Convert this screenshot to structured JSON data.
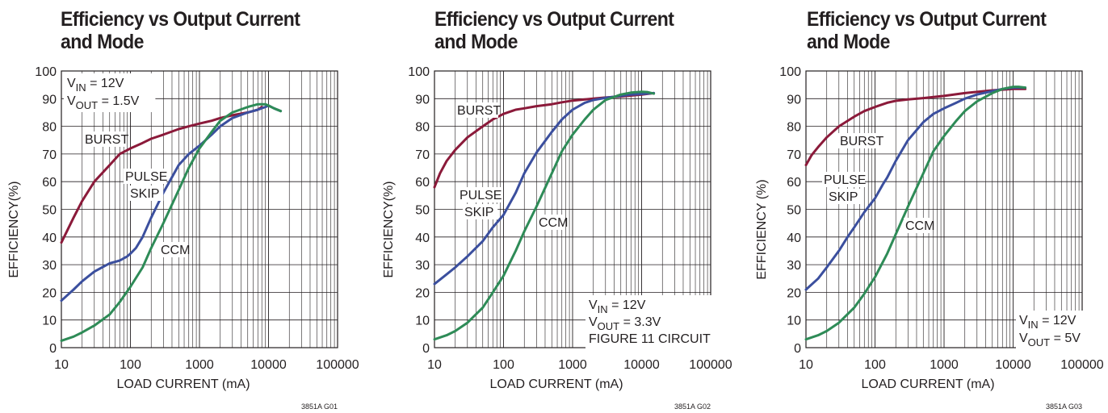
{
  "chart_data": [
    {
      "type": "line",
      "title": [
        "Efficiency vs Output Current",
        "and Mode"
      ],
      "xlabel": "LOAD CURRENT (mA)",
      "ylabel": "EFFICIENCY(%)",
      "xscale": "log",
      "xlim": [
        10,
        100000
      ],
      "ylim": [
        0,
        100
      ],
      "xticks": [
        "10",
        "100",
        "1000",
        "10000",
        "100000"
      ],
      "yticks": [
        "0",
        "10",
        "20",
        "30",
        "40",
        "50",
        "60",
        "70",
        "80",
        "90",
        "100"
      ],
      "conditions": [
        {
          "main": "V",
          "sub": "IN",
          "rest": " = 12V"
        },
        {
          "main": "V",
          "sub": "OUT",
          "rest": " = 1.5V"
        }
      ],
      "conditions_position": "top-left",
      "code": "3851A G01",
      "series": [
        {
          "name": "BURST",
          "color": "#8b1a3a",
          "label": [
            "BURST"
          ],
          "points": [
            [
              10,
              38
            ],
            [
              15,
              47
            ],
            [
              20,
              53
            ],
            [
              30,
              60
            ],
            [
              50,
              66
            ],
            [
              70,
              70
            ],
            [
              100,
              72
            ],
            [
              150,
              74
            ],
            [
              200,
              75.5
            ],
            [
              300,
              77
            ],
            [
              500,
              79
            ],
            [
              700,
              80
            ],
            [
              1000,
              81
            ],
            [
              1500,
              82
            ],
            [
              2000,
              83
            ],
            [
              3000,
              84
            ],
            [
              5000,
              85
            ],
            [
              7000,
              86
            ],
            [
              8000,
              87
            ]
          ]
        },
        {
          "name": "PULSE SKIP",
          "color": "#3b4f9e",
          "label": [
            "PULSE",
            "SKIP"
          ],
          "points": [
            [
              10,
              17
            ],
            [
              15,
              21
            ],
            [
              20,
              24
            ],
            [
              30,
              27.5
            ],
            [
              50,
              30.5
            ],
            [
              70,
              31.5
            ],
            [
              90,
              33
            ],
            [
              100,
              34
            ],
            [
              120,
              36
            ],
            [
              150,
              40
            ],
            [
              200,
              47
            ],
            [
              300,
              56
            ],
            [
              500,
              66
            ],
            [
              700,
              70
            ],
            [
              1000,
              73
            ],
            [
              1500,
              77
            ],
            [
              2000,
              80
            ],
            [
              3000,
              83
            ],
            [
              5000,
              85
            ],
            [
              7000,
              86
            ],
            [
              9000,
              87
            ],
            [
              10000,
              87.5
            ],
            [
              12000,
              86.5
            ],
            [
              15000,
              85.5
            ]
          ]
        },
        {
          "name": "CCM",
          "color": "#2e8b57",
          "label": [
            "CCM"
          ],
          "points": [
            [
              10,
              2.5
            ],
            [
              15,
              4
            ],
            [
              20,
              5.5
            ],
            [
              30,
              8
            ],
            [
              50,
              12
            ],
            [
              70,
              16.5
            ],
            [
              100,
              22
            ],
            [
              150,
              29
            ],
            [
              200,
              36
            ],
            [
              300,
              45
            ],
            [
              500,
              57
            ],
            [
              700,
              65
            ],
            [
              1000,
              72
            ],
            [
              1500,
              78
            ],
            [
              2000,
              82
            ],
            [
              3000,
              85
            ],
            [
              5000,
              87
            ],
            [
              7000,
              88
            ],
            [
              9000,
              88
            ],
            [
              10000,
              87.5
            ],
            [
              12000,
              86.5
            ],
            [
              15000,
              85.5
            ]
          ]
        }
      ]
    },
    {
      "type": "line",
      "title": [
        "Efficiency vs Output Current",
        "and Mode"
      ],
      "xlabel": "LOAD CURRENT (mA)",
      "ylabel": "EFFICIENCY(%)",
      "xscale": "log",
      "xlim": [
        10,
        100000
      ],
      "ylim": [
        0,
        100
      ],
      "xticks": [
        "10",
        "100",
        "1000",
        "10000",
        "100000"
      ],
      "yticks": [
        "0",
        "10",
        "20",
        "30",
        "40",
        "50",
        "60",
        "70",
        "80",
        "90",
        "100"
      ],
      "conditions": [
        {
          "main": "V",
          "sub": "IN",
          "rest": " = 12V"
        },
        {
          "main": "V",
          "sub": "OUT",
          "rest": " = 3.3V"
        },
        {
          "main": "FIGURE 11 CIRCUIT",
          "sub": "",
          "rest": ""
        }
      ],
      "conditions_position": "bottom-right",
      "code": "3851A G02",
      "series": [
        {
          "name": "BURST",
          "color": "#8b1a3a",
          "label": [
            "BURST"
          ],
          "points": [
            [
              10,
              58
            ],
            [
              12,
              63
            ],
            [
              15,
              67.5
            ],
            [
              20,
              71.5
            ],
            [
              30,
              76
            ],
            [
              50,
              80
            ],
            [
              70,
              82.5
            ],
            [
              100,
              84.5
            ],
            [
              150,
              86
            ],
            [
              200,
              86.5
            ],
            [
              300,
              87.3
            ],
            [
              500,
              88
            ],
            [
              700,
              88.7
            ],
            [
              1000,
              89.3
            ],
            [
              2000,
              90
            ],
            [
              3000,
              90.4
            ],
            [
              5000,
              90.8
            ],
            [
              10000,
              91.5
            ],
            [
              15000,
              92
            ]
          ]
        },
        {
          "name": "PULSE SKIP",
          "color": "#3b4f9e",
          "label": [
            "PULSE",
            "SKIP"
          ],
          "points": [
            [
              10,
              23
            ],
            [
              15,
              26.5
            ],
            [
              20,
              29
            ],
            [
              30,
              33
            ],
            [
              50,
              38.5
            ],
            [
              70,
              43.5
            ],
            [
              100,
              48
            ],
            [
              150,
              56
            ],
            [
              200,
              63
            ],
            [
              300,
              70.5
            ],
            [
              500,
              78
            ],
            [
              700,
              82.5
            ],
            [
              1000,
              86
            ],
            [
              1500,
              88.5
            ],
            [
              2000,
              89.5
            ],
            [
              3000,
              90.3
            ],
            [
              5000,
              91
            ],
            [
              7000,
              91.5
            ],
            [
              10000,
              91.7
            ],
            [
              15000,
              92
            ]
          ]
        },
        {
          "name": "CCM",
          "color": "#2e8b57",
          "label": [
            "CCM"
          ],
          "points": [
            [
              10,
              3
            ],
            [
              15,
              4.5
            ],
            [
              20,
              6
            ],
            [
              30,
              9
            ],
            [
              50,
              14.5
            ],
            [
              70,
              20
            ],
            [
              100,
              26
            ],
            [
              150,
              35
            ],
            [
              200,
              42
            ],
            [
              300,
              51
            ],
            [
              500,
              63
            ],
            [
              700,
              71
            ],
            [
              1000,
              77
            ],
            [
              1500,
              82.5
            ],
            [
              2000,
              86
            ],
            [
              3000,
              89.5
            ],
            [
              5000,
              91.5
            ],
            [
              7000,
              92.2
            ],
            [
              10000,
              92.5
            ],
            [
              12000,
              92.4
            ],
            [
              15000,
              91.8
            ]
          ]
        }
      ]
    },
    {
      "type": "line",
      "title": [
        "Efficiency vs Output Current",
        "and Mode"
      ],
      "xlabel": "LOAD CURRENT (mA)",
      "ylabel": "EFFICIENCY (%)",
      "xscale": "log",
      "xlim": [
        10,
        100000
      ],
      "ylim": [
        0,
        100
      ],
      "xticks": [
        "10",
        "100",
        "1000",
        "10000",
        "100000"
      ],
      "yticks": [
        "0",
        "10",
        "20",
        "30",
        "40",
        "50",
        "60",
        "70",
        "80",
        "90",
        "100"
      ],
      "conditions": [
        {
          "main": "V",
          "sub": "IN",
          "rest": " = 12V"
        },
        {
          "main": "V",
          "sub": "OUT",
          "rest": " = 5V"
        }
      ],
      "conditions_position": "bottom-right",
      "code": "3851A G03",
      "series": [
        {
          "name": "BURST",
          "color": "#8b1a3a",
          "label": [
            "BURST"
          ],
          "points": [
            [
              10,
              66
            ],
            [
              12,
              69.5
            ],
            [
              15,
              72.5
            ],
            [
              20,
              76
            ],
            [
              30,
              80
            ],
            [
              50,
              83.5
            ],
            [
              70,
              85.5
            ],
            [
              100,
              87
            ],
            [
              150,
              88.5
            ],
            [
              200,
              89.2
            ],
            [
              300,
              89.7
            ],
            [
              500,
              90.2
            ],
            [
              1000,
              91
            ],
            [
              2000,
              92
            ],
            [
              5000,
              93
            ],
            [
              10000,
              93.5
            ],
            [
              15000,
              93.5
            ]
          ]
        },
        {
          "name": "PULSE SKIP",
          "color": "#3b4f9e",
          "label": [
            "PULSE",
            "SKIP"
          ],
          "points": [
            [
              10,
              21
            ],
            [
              15,
              25
            ],
            [
              20,
              29
            ],
            [
              30,
              35
            ],
            [
              40,
              40
            ],
            [
              50,
              43.5
            ],
            [
              70,
              49
            ],
            [
              100,
              54
            ],
            [
              130,
              59
            ],
            [
              150,
              61.5
            ],
            [
              200,
              67.5
            ],
            [
              300,
              75
            ],
            [
              500,
              81.5
            ],
            [
              700,
              84.5
            ],
            [
              1000,
              86.5
            ],
            [
              1500,
              88.5
            ],
            [
              2000,
              90
            ],
            [
              3000,
              91.5
            ],
            [
              5000,
              92.7
            ],
            [
              7000,
              93.5
            ],
            [
              10000,
              94
            ],
            [
              15000,
              94
            ]
          ]
        },
        {
          "name": "CCM",
          "color": "#2e8b57",
          "label": [
            "CCM"
          ],
          "points": [
            [
              10,
              3
            ],
            [
              15,
              4.5
            ],
            [
              20,
              6
            ],
            [
              30,
              9
            ],
            [
              50,
              14.5
            ],
            [
              70,
              19.5
            ],
            [
              100,
              25.5
            ],
            [
              150,
              34
            ],
            [
              200,
              41
            ],
            [
              300,
              51
            ],
            [
              500,
              63
            ],
            [
              700,
              71
            ],
            [
              1000,
              76.5
            ],
            [
              1500,
              82
            ],
            [
              2000,
              85.5
            ],
            [
              3000,
              89
            ],
            [
              5000,
              92
            ],
            [
              7000,
              93.5
            ],
            [
              10000,
              94.3
            ],
            [
              12000,
              94.3
            ],
            [
              15000,
              94
            ]
          ]
        }
      ]
    }
  ]
}
